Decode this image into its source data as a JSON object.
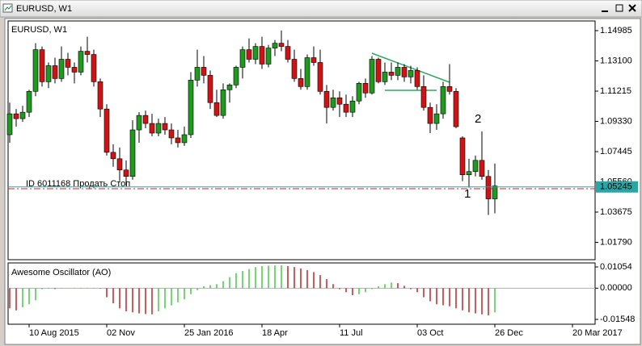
{
  "window_title": "EURUSD, W1",
  "chart_data": [
    {
      "type": "candlestick",
      "title": "EURUSD, W1",
      "categories": [
        null,
        null,
        null,
        "10 Aug 2015",
        null,
        null,
        null,
        null,
        null,
        null,
        null,
        null,
        null,
        null,
        null,
        "02 Nov",
        null,
        null,
        null,
        null,
        null,
        null,
        null,
        null,
        null,
        null,
        null,
        "25 Jan 2016",
        null,
        null,
        null,
        null,
        null,
        null,
        null,
        null,
        null,
        null,
        null,
        "18 Apr",
        null,
        null,
        null,
        null,
        null,
        null,
        null,
        null,
        null,
        null,
        null,
        "11 Jul",
        null,
        null,
        null,
        null,
        null,
        null,
        null,
        null,
        null,
        null,
        null,
        "03 Oct",
        null,
        null,
        null,
        null,
        null,
        null,
        null,
        null,
        null,
        null,
        null,
        "26 Dec",
        null,
        null,
        null,
        null,
        null,
        null,
        null,
        null,
        null,
        null,
        null,
        "20 Mar 2017"
      ],
      "open": [
        1.085,
        1.098,
        1.095,
        1.099,
        1.112,
        1.138,
        1.118,
        1.128,
        1.12,
        1.132,
        1.127,
        1.124,
        1.137,
        1.135,
        1.118,
        1.101,
        1.074,
        1.07,
        1.063,
        1.059,
        1.088,
        1.097,
        1.092,
        1.086,
        1.092,
        1.088,
        1.083,
        1.08,
        1.085,
        1.119,
        1.127,
        1.122,
        1.105,
        1.097,
        1.113,
        1.116,
        1.127,
        1.138,
        1.132,
        1.14,
        1.129,
        1.139,
        1.142,
        1.14,
        1.132,
        1.12,
        1.115,
        1.133,
        1.13,
        1.112,
        1.102,
        1.108,
        1.104,
        1.099,
        1.106,
        1.117,
        1.111,
        1.132,
        1.118,
        1.124,
        1.122,
        1.127,
        1.121,
        1.125,
        1.115,
        1.102,
        1.092,
        1.098,
        1.115,
        1.112,
        1.083,
        1.06,
        1.062,
        1.069,
        1.059,
        1.045,
        null,
        null,
        null,
        null,
        null,
        null,
        null,
        null,
        null,
        null,
        null,
        null
      ],
      "high": [
        1.105,
        1.101,
        1.103,
        1.113,
        1.142,
        1.14,
        1.13,
        1.133,
        1.14,
        1.136,
        1.13,
        1.14,
        1.146,
        1.138,
        1.12,
        1.104,
        1.079,
        1.077,
        1.069,
        1.094,
        1.099,
        1.1,
        1.098,
        1.095,
        1.096,
        1.092,
        1.088,
        1.09,
        1.124,
        1.138,
        1.134,
        1.125,
        1.113,
        1.117,
        1.117,
        1.128,
        1.14,
        1.145,
        1.142,
        1.146,
        1.141,
        1.144,
        1.15,
        1.144,
        1.138,
        1.126,
        1.135,
        1.14,
        1.138,
        1.116,
        1.113,
        1.112,
        1.11,
        1.109,
        1.118,
        1.12,
        1.134,
        1.133,
        1.13,
        1.13,
        1.13,
        1.129,
        1.128,
        1.127,
        1.122,
        1.105,
        1.104,
        1.118,
        1.129,
        1.114,
        1.084,
        1.07,
        1.072,
        1.087,
        1.063,
        1.067,
        null,
        null,
        null,
        null,
        null,
        null,
        null,
        null,
        null,
        null,
        null,
        null
      ],
      "low": [
        1.08,
        1.09,
        1.093,
        1.096,
        1.109,
        1.115,
        1.114,
        1.117,
        1.118,
        1.122,
        1.117,
        1.122,
        1.13,
        1.115,
        1.096,
        1.072,
        1.065,
        1.056,
        1.053,
        1.057,
        1.08,
        1.089,
        1.084,
        1.084,
        1.085,
        1.079,
        1.077,
        1.078,
        1.083,
        1.115,
        1.117,
        1.101,
        1.096,
        1.095,
        1.105,
        1.114,
        1.12,
        1.13,
        1.129,
        1.126,
        1.127,
        1.134,
        1.137,
        1.13,
        1.118,
        1.113,
        1.113,
        1.128,
        1.11,
        1.092,
        1.1,
        1.096,
        1.096,
        1.096,
        1.104,
        1.108,
        1.11,
        1.117,
        1.116,
        1.119,
        1.119,
        1.118,
        1.117,
        1.113,
        1.1,
        1.086,
        1.088,
        1.095,
        1.11,
        1.089,
        1.056,
        1.052,
        1.059,
        1.057,
        1.035,
        1.036,
        null,
        null,
        null,
        null,
        null,
        null,
        null,
        null,
        null,
        null,
        null,
        null
      ],
      "close": [
        1.098,
        1.095,
        1.099,
        1.112,
        1.138,
        1.118,
        1.128,
        1.12,
        1.132,
        1.127,
        1.124,
        1.137,
        1.135,
        1.118,
        1.101,
        1.074,
        1.07,
        1.063,
        1.059,
        1.088,
        1.097,
        1.092,
        1.086,
        1.092,
        1.088,
        1.083,
        1.08,
        1.085,
        1.119,
        1.127,
        1.122,
        1.105,
        1.097,
        1.113,
        1.116,
        1.127,
        1.138,
        1.132,
        1.14,
        1.129,
        1.139,
        1.142,
        1.14,
        1.132,
        1.12,
        1.115,
        1.133,
        1.13,
        1.112,
        1.102,
        1.108,
        1.104,
        1.099,
        1.106,
        1.117,
        1.111,
        1.132,
        1.118,
        1.124,
        1.122,
        1.127,
        1.121,
        1.125,
        1.115,
        1.102,
        1.092,
        1.098,
        1.115,
        1.112,
        1.09,
        1.06,
        1.062,
        1.069,
        1.059,
        1.045,
        1.053,
        null,
        null,
        null,
        null,
        null,
        null,
        null,
        null,
        null,
        null,
        null,
        null
      ],
      "up_color": "#1f9a1f",
      "down_color": "#d01414",
      "wick_color": "#000000",
      "ylim": [
        1.00708,
        1.15588
      ],
      "yticks": [
        1.14985,
        {
          "value": 1.131,
          "label": "1.13100"
        },
        1.11215,
        {
          "value": 1.0933,
          "label": "1.09330"
        },
        1.07445,
        {
          "value": 1.0556,
          "label": "1.05560"
        },
        1.03675,
        {
          "value": 1.0179,
          "label": "1.01790"
        }
      ],
      "grid": false,
      "current_price": {
        "value": 1.05245,
        "label": "1.05245"
      },
      "current_price_color": "#2aa6a6",
      "order": {
        "label": "ID 6011168 Продать Стоп",
        "price": 1.05132,
        "color": "#d02020"
      },
      "annotations": [
        "1",
        "2"
      ]
    },
    {
      "type": "bar",
      "title": "Awesome Oscillator (AO)",
      "values": [
        -0.01,
        -0.011,
        -0.0095,
        -0.008,
        -0.006,
        -0.0005,
        -0.0003,
        -0.0004,
        -0.0002,
        0.0001,
        0.0002,
        0.0001,
        0.0002,
        0.0001,
        -0.0002,
        -0.0045,
        -0.0075,
        -0.01,
        -0.0115,
        -0.012,
        -0.0125,
        -0.0128,
        -0.013,
        -0.0115,
        -0.01,
        -0.0085,
        -0.007,
        -0.0055,
        -0.003,
        -0.001,
        0.001,
        0.0015,
        0.002,
        0.0035,
        0.0055,
        0.0075,
        0.0085,
        0.0095,
        0.0105,
        0.011,
        0.0112,
        0.0113,
        0.0114,
        0.011,
        0.0105,
        0.0098,
        0.009,
        0.008,
        0.0065,
        0.0045,
        0.002,
        -0.0005,
        -0.002,
        -0.0035,
        -0.003,
        -0.002,
        -0.0005,
        0.001,
        0.002,
        0.0028,
        0.0025,
        0.0012,
        -0.0005,
        -0.002,
        -0.0045,
        -0.0065,
        -0.008,
        -0.0085,
        -0.009,
        -0.01,
        -0.011,
        -0.012,
        -0.0125,
        -0.013,
        -0.0135,
        -0.012,
        null,
        null,
        null,
        null,
        null,
        null,
        null,
        null,
        null,
        null,
        null,
        null
      ],
      "up_color": "#36c836",
      "down_color": "#cc1010",
      "ylim": [
        -0.01788,
        0.01254
      ],
      "yticks": [
        0.01054,
        {
          "value": 0,
          "label": "0.00000"
        },
        -0.01548
      ],
      "grid": false
    }
  ]
}
